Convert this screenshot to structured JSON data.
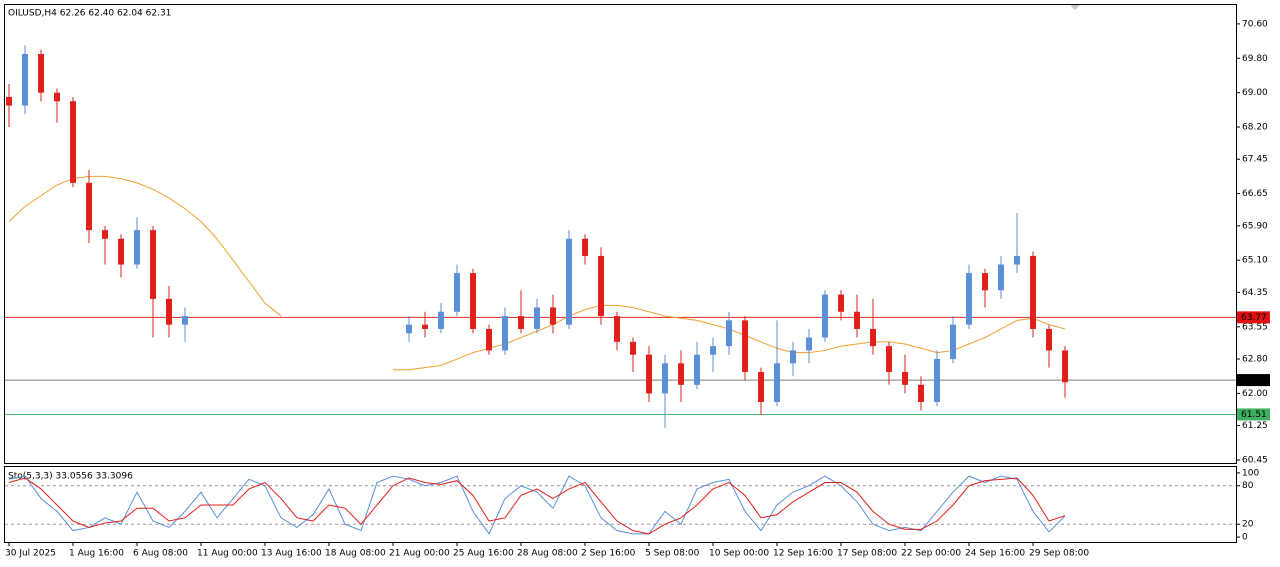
{
  "chart_data": {
    "type": "candlestick",
    "header": "OILUSD,H4  62.26 62.40 62.04 62.31",
    "x": [
      "30 Jul 2025",
      null,
      null,
      null,
      "1 Aug 16:00",
      null,
      null,
      null,
      "6 Aug 08:00",
      null,
      null,
      null,
      "11 Aug 00:00",
      null,
      null,
      null,
      "13 Aug 16:00",
      null,
      null,
      null,
      "18 Aug 08:00",
      null,
      null,
      null,
      "21 Aug 00:00",
      null,
      null,
      null,
      "25 Aug 16:00",
      null,
      null,
      null,
      "28 Aug 08:00",
      null,
      null,
      null,
      "2 Sep 16:00",
      null,
      null,
      null,
      "5 Sep 08:00",
      null,
      null,
      null,
      "10 Sep 00:00",
      null,
      null,
      null,
      "12 Sep 16:00",
      null,
      null,
      null,
      "17 Sep 08:00",
      null,
      null,
      null,
      "22 Sep 00:00",
      null,
      null,
      null,
      "24 Sep 16:00",
      null,
      null,
      null,
      "29 Sep 08:00",
      null,
      null
    ],
    "candles": [
      [
        68.9,
        69.2,
        68.2,
        68.7
      ],
      [
        68.7,
        70.1,
        68.5,
        69.9
      ],
      [
        69.9,
        70.0,
        68.8,
        69.0
      ],
      [
        69.0,
        69.1,
        68.3,
        68.8
      ],
      [
        68.8,
        68.9,
        66.8,
        66.9
      ],
      [
        66.9,
        67.2,
        65.5,
        65.8
      ],
      [
        65.8,
        65.9,
        65.0,
        65.6
      ],
      [
        65.6,
        65.7,
        64.7,
        65.0
      ],
      [
        65.0,
        66.1,
        64.9,
        65.8
      ],
      [
        65.8,
        65.9,
        63.3,
        64.2
      ],
      [
        64.2,
        64.5,
        63.3,
        63.6
      ],
      [
        63.6,
        64.0,
        63.2,
        63.8
      ],
      null,
      null,
      null,
      null,
      null,
      null,
      null,
      null,
      null,
      null,
      null,
      null,
      null,
      [
        63.4,
        63.8,
        63.2,
        63.6
      ],
      [
        63.6,
        63.9,
        63.3,
        63.5
      ],
      [
        63.5,
        64.1,
        63.4,
        63.9
      ],
      [
        63.9,
        65.0,
        63.8,
        64.8
      ],
      [
        64.8,
        64.9,
        63.4,
        63.5
      ],
      [
        63.5,
        63.6,
        62.9,
        63.0
      ],
      [
        63.0,
        64.0,
        62.9,
        63.8
      ],
      [
        63.8,
        64.4,
        63.4,
        63.5
      ],
      [
        63.5,
        64.2,
        63.4,
        64.0
      ],
      [
        64.0,
        64.3,
        63.4,
        63.6
      ],
      [
        63.6,
        65.8,
        63.5,
        65.6
      ],
      [
        65.6,
        65.7,
        65.0,
        65.2
      ],
      [
        65.2,
        65.4,
        63.6,
        63.8
      ],
      [
        63.8,
        63.9,
        63.0,
        63.2
      ],
      [
        63.2,
        63.3,
        62.5,
        62.9
      ],
      [
        62.9,
        63.1,
        61.8,
        62.0
      ],
      [
        62.0,
        62.9,
        61.2,
        62.7
      ],
      [
        62.7,
        63.0,
        61.8,
        62.2
      ],
      [
        62.2,
        63.2,
        62.1,
        62.9
      ],
      [
        62.9,
        63.3,
        62.5,
        63.1
      ],
      [
        63.1,
        63.9,
        62.9,
        63.7
      ],
      [
        63.7,
        63.8,
        62.3,
        62.5
      ],
      [
        62.5,
        62.6,
        61.5,
        61.8
      ],
      [
        61.8,
        63.7,
        61.7,
        62.7
      ],
      [
        62.7,
        63.2,
        62.4,
        63.0
      ],
      [
        63.0,
        63.5,
        62.7,
        63.3
      ],
      [
        63.3,
        64.4,
        63.2,
        64.3
      ],
      [
        64.3,
        64.4,
        63.7,
        63.9
      ],
      [
        63.9,
        64.3,
        63.3,
        63.5
      ],
      [
        63.5,
        64.2,
        62.9,
        63.1
      ],
      [
        63.1,
        63.2,
        62.2,
        62.5
      ],
      [
        62.5,
        62.9,
        62.0,
        62.2
      ],
      [
        62.2,
        62.4,
        61.6,
        61.8
      ],
      [
        61.8,
        63.0,
        61.7,
        62.8
      ],
      [
        62.8,
        63.8,
        62.7,
        63.6
      ],
      [
        63.6,
        65.0,
        63.5,
        64.8
      ],
      [
        64.8,
        64.9,
        64.0,
        64.4
      ],
      [
        64.4,
        65.2,
        64.2,
        65.0
      ],
      [
        65.0,
        66.2,
        64.8,
        65.2
      ],
      [
        65.2,
        65.3,
        63.3,
        63.5
      ],
      [
        63.5,
        63.6,
        62.6,
        63.0
      ],
      [
        63.0,
        63.1,
        61.9,
        62.26
      ]
    ],
    "up_color": "#5b8fd9",
    "down_color": "#e0201a",
    "ma": {
      "color": "#f0a030",
      "values": [
        66.0,
        66.35,
        66.6,
        66.85,
        67.0,
        67.05,
        67.05,
        67.0,
        66.9,
        66.75,
        66.55,
        66.3,
        66.0,
        65.6,
        65.1,
        64.6,
        64.1,
        63.8,
        null,
        null,
        null,
        null,
        null,
        null,
        62.55,
        62.55,
        62.6,
        62.65,
        62.8,
        62.95,
        63.05,
        63.15,
        63.3,
        63.45,
        63.6,
        63.8,
        63.95,
        64.05,
        64.05,
        64.0,
        63.9,
        63.8,
        63.75,
        63.7,
        63.6,
        63.5,
        63.35,
        63.2,
        63.05,
        62.95,
        62.95,
        63.0,
        63.1,
        63.15,
        63.2,
        63.2,
        63.15,
        63.05,
        62.95,
        63.0,
        63.15,
        63.3,
        63.5,
        63.7,
        63.75,
        63.6,
        63.5
      ]
    },
    "ylim": [
      60.38,
      71.04
    ],
    "yticks": [
      {
        "value": 70.6,
        "label": "70.60"
      },
      {
        "value": 69.8,
        "label": "69.80"
      },
      {
        "value": 69.0,
        "label": "69.00"
      },
      {
        "value": 68.2,
        "label": "68.20"
      },
      {
        "value": 67.45,
        "label": "67.45"
      },
      {
        "value": 66.65,
        "label": "66.65"
      },
      {
        "value": 65.9,
        "label": "65.90"
      },
      {
        "value": 65.1,
        "label": "65.10"
      },
      {
        "value": 64.35,
        "label": "64.35"
      },
      {
        "value": 63.55,
        "label": "63.55"
      },
      {
        "value": 62.8,
        "label": "62.80"
      },
      {
        "value": 62.0,
        "label": "62.00"
      },
      {
        "value": 61.25,
        "label": "61.25"
      },
      {
        "value": 60.45,
        "label": "60.45"
      }
    ],
    "price_lines": [
      {
        "value": 63.77,
        "color": "#e01010"
      },
      {
        "value": 62.31,
        "color": "#000000"
      },
      {
        "value": 61.51,
        "color": "#3cb060"
      }
    ],
    "oscillator": {
      "header": "Sto(5,3,3) 33.0556 33.3096",
      "ylim": [
        -7.7,
        109.2
      ],
      "yticks": [
        100,
        80,
        20,
        0
      ],
      "levels": [
        80,
        20
      ],
      "series": [
        {
          "color": "#5b8fd9",
          "values": [
            90,
            95,
            60,
            40,
            10,
            15,
            30,
            20,
            70,
            25,
            15,
            40,
            70,
            30,
            60,
            90,
            80,
            30,
            15,
            35,
            75,
            20,
            10,
            85,
            95,
            90,
            80,
            85,
            95,
            40,
            5,
            60,
            80,
            70,
            45,
            95,
            80,
            30,
            10,
            5,
            5,
            40,
            20,
            75,
            85,
            90,
            40,
            10,
            50,
            70,
            80,
            95,
            80,
            55,
            20,
            10,
            15,
            10,
            40,
            70,
            95,
            85,
            95,
            90,
            40,
            8,
            33.0556
          ]
        },
        {
          "color": "#e0201a",
          "values": [
            85,
            92,
            75,
            50,
            25,
            15,
            22,
            25,
            45,
            45,
            25,
            30,
            50,
            50,
            50,
            75,
            85,
            60,
            30,
            25,
            50,
            45,
            20,
            50,
            80,
            92,
            85,
            82,
            88,
            65,
            25,
            30,
            65,
            75,
            60,
            75,
            85,
            55,
            25,
            10,
            5,
            20,
            30,
            50,
            75,
            85,
            65,
            30,
            35,
            55,
            70,
            85,
            85,
            70,
            40,
            20,
            12,
            12,
            25,
            50,
            80,
            88,
            90,
            92,
            65,
            25,
            33.3096
          ]
        }
      ]
    }
  }
}
